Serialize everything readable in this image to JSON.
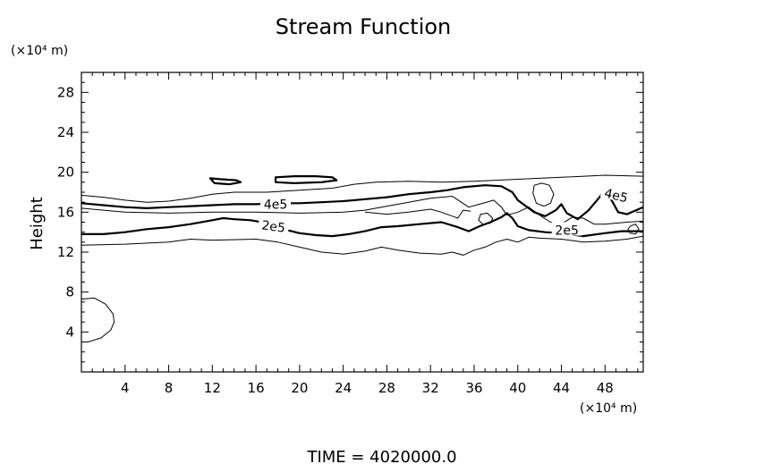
{
  "chart_data": {
    "type": "contour",
    "title": "Stream Function",
    "ylabel": "Height",
    "x_unit_label": "(×10⁴ m)",
    "y_unit_label": "(×10⁴ m)",
    "xlim": [
      0,
      51.5
    ],
    "ylim": [
      0,
      30
    ],
    "xticks": [
      4,
      8,
      12,
      16,
      20,
      24,
      28,
      32,
      36,
      40,
      44,
      48
    ],
    "yticks": [
      4,
      8,
      12,
      16,
      20,
      24,
      28
    ],
    "footer": "TIME  =  4020000.0",
    "contour_labels": [
      {
        "text": "4e5",
        "x": 17.8,
        "y": 16.7
      },
      {
        "text": "2e5",
        "x": 17.6,
        "y": 14.5
      },
      {
        "text": "2e5",
        "x": 44.5,
        "y": 14.1
      },
      {
        "text": "4e5",
        "x": 49.0,
        "y": 17.6
      }
    ],
    "contours": [
      {
        "level": "thin",
        "bold": false,
        "points": [
          [
            0,
            17.7
          ],
          [
            2,
            17.5
          ],
          [
            4,
            17.2
          ],
          [
            6,
            17.0
          ],
          [
            8,
            17.1
          ],
          [
            10,
            17.4
          ],
          [
            12,
            17.8
          ],
          [
            14,
            18.0
          ],
          [
            17,
            18.0
          ],
          [
            20,
            18.2
          ],
          [
            23,
            18.4
          ],
          [
            25,
            18.8
          ],
          [
            27,
            19.0
          ],
          [
            30,
            19.1
          ],
          [
            33,
            19.0
          ],
          [
            36,
            19.1
          ],
          [
            40,
            19.3
          ],
          [
            44,
            19.5
          ],
          [
            48,
            19.7
          ],
          [
            51.5,
            19.6
          ]
        ]
      },
      {
        "level": "4e5",
        "bold": true,
        "points": [
          [
            0,
            16.9
          ],
          [
            2,
            16.7
          ],
          [
            4,
            16.5
          ],
          [
            6,
            16.4
          ],
          [
            8,
            16.5
          ],
          [
            10,
            16.6
          ],
          [
            12,
            16.7
          ],
          [
            14,
            16.8
          ],
          [
            16,
            16.8
          ],
          [
            18,
            16.9
          ],
          [
            20,
            16.9
          ],
          [
            22,
            17.0
          ],
          [
            24,
            17.1
          ],
          [
            26,
            17.3
          ],
          [
            28,
            17.5
          ],
          [
            30,
            17.8
          ],
          [
            32,
            18.0
          ],
          [
            33.5,
            18.2
          ],
          [
            35,
            18.5
          ],
          [
            37,
            18.7
          ],
          [
            38.5,
            18.6
          ],
          [
            39.5,
            18.0
          ],
          [
            40,
            17.2
          ],
          [
            40.5,
            16.8
          ],
          [
            41.5,
            16.0
          ],
          [
            42.5,
            15.6
          ],
          [
            43.5,
            16.2
          ],
          [
            44,
            16.8
          ],
          [
            44.5,
            15.9
          ],
          [
            45.5,
            15.3
          ],
          [
            46.5,
            16.2
          ],
          [
            47.5,
            17.5
          ],
          [
            48,
            18.3
          ],
          [
            48.7,
            17.0
          ],
          [
            49.2,
            16.0
          ],
          [
            50,
            15.8
          ],
          [
            51.5,
            16.5
          ]
        ]
      },
      {
        "level": "thin",
        "bold": false,
        "points": [
          [
            0,
            16.4
          ],
          [
            4,
            16.0
          ],
          [
            8,
            15.9
          ],
          [
            12,
            16.0
          ],
          [
            16,
            16.0
          ],
          [
            20,
            15.9
          ],
          [
            24,
            16.0
          ],
          [
            26,
            16.2
          ],
          [
            28,
            16.6
          ],
          [
            30,
            17.0
          ],
          [
            32,
            17.4
          ],
          [
            34,
            17.6
          ],
          [
            35.5,
            16.5
          ],
          [
            36.5,
            16.8
          ],
          [
            37.8,
            17.2
          ],
          [
            38.5,
            16.5
          ],
          [
            39,
            15.7
          ],
          [
            40,
            16.0
          ],
          [
            41,
            16.5
          ],
          [
            42,
            15.7
          ],
          [
            43,
            15.0
          ],
          [
            44,
            14.8
          ],
          [
            45,
            15.5
          ],
          [
            46,
            15.4
          ],
          [
            47,
            14.8
          ],
          [
            48,
            14.8
          ],
          [
            49,
            14.9
          ],
          [
            50,
            15.0
          ],
          [
            51.5,
            15.1
          ]
        ]
      },
      {
        "level": "thin",
        "bold": false,
        "points": [
          [
            26,
            16.0
          ],
          [
            28,
            15.8
          ],
          [
            30,
            16.0
          ],
          [
            32,
            16.3
          ],
          [
            33,
            16.0
          ],
          [
            34.5,
            15.4
          ],
          [
            35,
            16.2
          ],
          [
            35.7,
            16.1
          ]
        ]
      },
      {
        "level": "2e5",
        "bold": true,
        "points": [
          [
            0,
            13.8
          ],
          [
            2,
            13.8
          ],
          [
            4,
            14.0
          ],
          [
            6,
            14.3
          ],
          [
            8,
            14.5
          ],
          [
            10,
            14.8
          ],
          [
            12,
            15.2
          ],
          [
            13,
            15.4
          ],
          [
            14,
            15.3
          ],
          [
            15.5,
            15.2
          ],
          [
            17,
            14.9
          ],
          [
            18.5,
            14.3
          ],
          [
            20,
            13.9
          ],
          [
            21.5,
            13.7
          ],
          [
            23,
            13.6
          ],
          [
            24.5,
            13.8
          ],
          [
            26,
            14.1
          ],
          [
            27.5,
            14.5
          ],
          [
            29,
            14.6
          ],
          [
            31,
            14.8
          ],
          [
            33,
            15.0
          ],
          [
            34.5,
            14.5
          ],
          [
            35.5,
            14.1
          ],
          [
            36.5,
            14.6
          ],
          [
            37.5,
            15.0
          ],
          [
            38.5,
            15.5
          ],
          [
            39,
            15.9
          ],
          [
            39.5,
            15.4
          ],
          [
            40,
            14.6
          ],
          [
            41,
            14.2
          ],
          [
            42.5,
            14.0
          ],
          [
            44,
            13.9
          ],
          [
            46,
            13.6
          ],
          [
            48,
            13.9
          ],
          [
            49.5,
            14.1
          ],
          [
            51.5,
            14.1
          ]
        ]
      },
      {
        "level": "thin",
        "bold": false,
        "points": [
          [
            0,
            12.7
          ],
          [
            4,
            12.8
          ],
          [
            8,
            13.0
          ],
          [
            10,
            13.3
          ],
          [
            12,
            13.2
          ],
          [
            16,
            13.3
          ],
          [
            18,
            13.0
          ],
          [
            20,
            12.5
          ],
          [
            22,
            12.0
          ],
          [
            24,
            11.8
          ],
          [
            26,
            12.1
          ],
          [
            27.5,
            12.5
          ],
          [
            29,
            12.2
          ],
          [
            31,
            11.9
          ],
          [
            33,
            11.8
          ],
          [
            34,
            12.0
          ],
          [
            35,
            11.7
          ],
          [
            36,
            12.2
          ],
          [
            37,
            12.5
          ],
          [
            38,
            13.0
          ],
          [
            39,
            13.3
          ],
          [
            40,
            13.0
          ],
          [
            41,
            13.5
          ],
          [
            42,
            13.4
          ],
          [
            44,
            13.3
          ],
          [
            46,
            13.0
          ],
          [
            48,
            13.1
          ],
          [
            50,
            13.3
          ],
          [
            51.5,
            13.6
          ]
        ]
      },
      {
        "level": "thin",
        "bold": false,
        "points": [
          [
            0,
            7.3
          ],
          [
            1.2,
            7.4
          ],
          [
            2.2,
            6.8
          ],
          [
            2.9,
            5.8
          ],
          [
            3.0,
            5.0
          ],
          [
            2.7,
            4.2
          ],
          [
            1.8,
            3.4
          ],
          [
            0.6,
            3.0
          ],
          [
            0,
            3.0
          ]
        ]
      }
    ],
    "closed_contours": [
      {
        "bold": true,
        "points": [
          [
            11.8,
            19.4
          ],
          [
            12.8,
            19.3
          ],
          [
            14.2,
            19.2
          ],
          [
            14.6,
            19.0
          ],
          [
            13.6,
            18.8
          ],
          [
            12.2,
            18.9
          ],
          [
            11.8,
            19.4
          ]
        ]
      },
      {
        "bold": true,
        "points": [
          [
            17.8,
            19.5
          ],
          [
            19.5,
            19.6
          ],
          [
            21.5,
            19.6
          ],
          [
            23.0,
            19.5
          ],
          [
            23.4,
            19.2
          ],
          [
            22.0,
            19.0
          ],
          [
            19.5,
            18.9
          ],
          [
            17.8,
            19.0
          ],
          [
            17.8,
            19.5
          ]
        ]
      },
      {
        "bold": false,
        "points": [
          [
            36.6,
            15.8
          ],
          [
            37.2,
            15.9
          ],
          [
            37.7,
            15.4
          ],
          [
            37.5,
            14.9
          ],
          [
            36.8,
            14.8
          ],
          [
            36.4,
            15.2
          ],
          [
            36.6,
            15.8
          ]
        ]
      },
      {
        "bold": false,
        "points": [
          [
            41.5,
            18.7
          ],
          [
            42.2,
            18.9
          ],
          [
            42.9,
            18.7
          ],
          [
            43.3,
            17.8
          ],
          [
            43.0,
            16.9
          ],
          [
            42.4,
            16.6
          ],
          [
            41.7,
            16.9
          ],
          [
            41.4,
            17.9
          ],
          [
            41.5,
            18.7
          ]
        ]
      },
      {
        "bold": false,
        "points": [
          [
            50.3,
            14.6
          ],
          [
            50.8,
            14.8
          ],
          [
            51.1,
            14.3
          ],
          [
            50.8,
            13.8
          ],
          [
            50.3,
            13.9
          ],
          [
            50.1,
            14.3
          ],
          [
            50.3,
            14.6
          ]
        ]
      }
    ]
  }
}
